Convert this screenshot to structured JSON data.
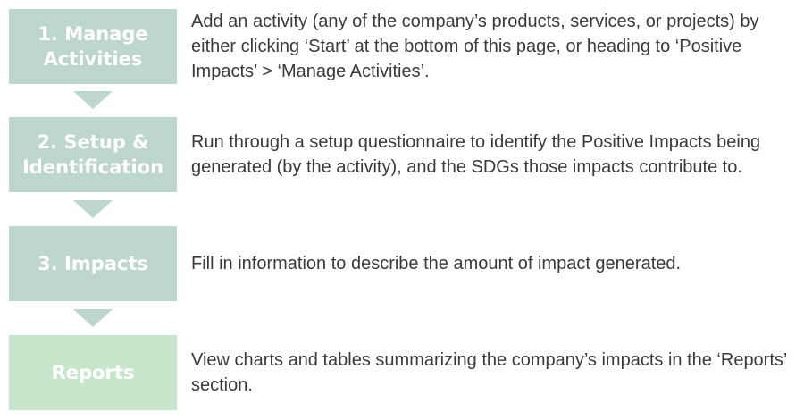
{
  "steps": [
    {
      "title": "1. Manage\nActivities",
      "description": "Add an activity (any of the company’s products, services, or projects) by either clicking ‘Start’ at the bottom of this page, or heading to ‘Positive Impacts’ > ‘Manage Activities’."
    },
    {
      "title": "2. Setup &\nIdentification",
      "description": "Run through a setup questionnaire to identify the Positive Impacts being generated (by the activity), and the SDGs those impacts contribute to."
    },
    {
      "title": "3. Impacts",
      "description": "Fill in information to describe the amount of impact generated."
    },
    {
      "title": "Reports",
      "description": "View charts and tables summarizing the company’s impacts in the ‘Reports’ section."
    }
  ],
  "colors": {
    "step_box": "#bdd7cf",
    "reports_box": "#c7e6cb",
    "arrow": "#bdd7cf",
    "description_text": "#3a3a3a"
  }
}
